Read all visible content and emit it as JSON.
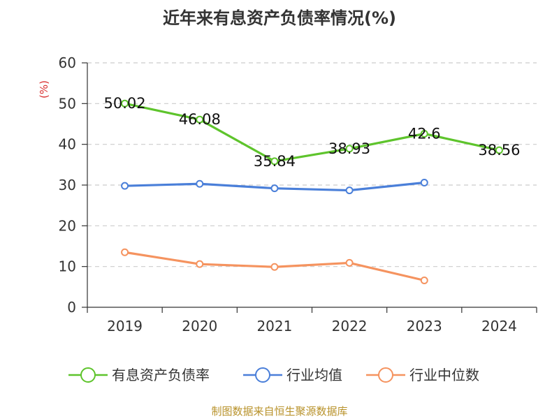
{
  "title": "近年来有息资产负债率情况(%)",
  "source": "制图数据来自恒生聚源数据库",
  "colors": {
    "primary": "#5ec42c",
    "industry_avg": "#4a7fd9",
    "industry_median": "#f5935f",
    "unit": "#d93030",
    "grid": "#cccccc",
    "axis": "#333333"
  },
  "chart_data": {
    "type": "line",
    "x": [
      "2019",
      "2020",
      "2021",
      "2022",
      "2023",
      "2024"
    ],
    "ylabel": "(%)",
    "ylim": [
      0,
      60
    ],
    "yticks": [
      "0",
      "10",
      "20",
      "30",
      "40",
      "50",
      "60"
    ],
    "grid": true,
    "legend_position": "bottom",
    "series": [
      {
        "name": "有息资产负债率",
        "values": [
          50.02,
          46.08,
          35.84,
          38.93,
          42.6,
          38.56
        ],
        "labels": [
          "50.02",
          "46.08",
          "35.84",
          "38.93",
          "42.6",
          "38.56"
        ]
      },
      {
        "name": "行业均值",
        "values": [
          29.8,
          30.3,
          29.2,
          28.7,
          30.6,
          null
        ]
      },
      {
        "name": "行业中位数",
        "values": [
          13.5,
          10.6,
          9.9,
          10.9,
          6.6,
          null
        ]
      }
    ]
  }
}
